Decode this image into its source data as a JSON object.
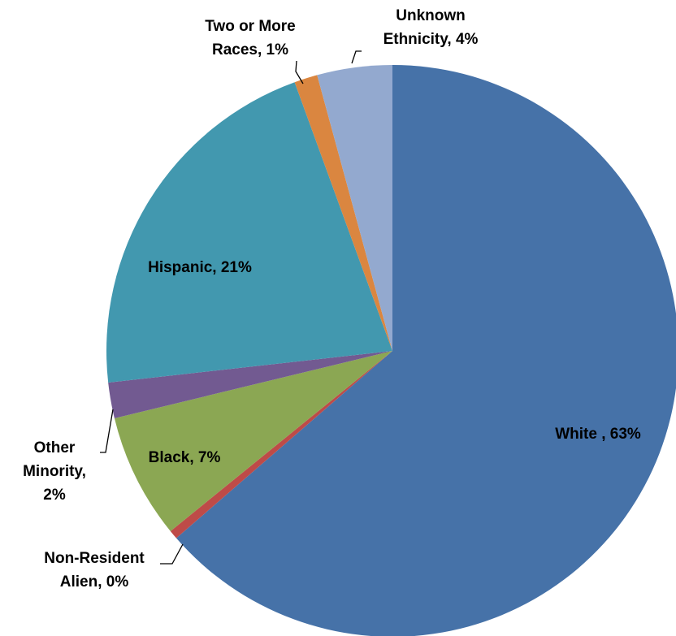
{
  "chart_data": {
    "type": "pie",
    "title": "",
    "start": "12 o'clock, clockwise",
    "slices": [
      {
        "category": "White ",
        "value": 63,
        "color": "#4672A8",
        "label": [
          "White , 63%"
        ]
      },
      {
        "category": "Non-Resident Alien",
        "value": 0.5,
        "color": "#BE4B48",
        "label": [
          "Non-Resident",
          "Alien, 0%"
        ]
      },
      {
        "category": "Black",
        "value": 7,
        "color": "#8BA753",
        "label": [
          "Black, 7%"
        ]
      },
      {
        "category": "Other Minority",
        "value": 2,
        "color": "#725A91",
        "label": [
          "Other",
          "Minority,",
          "2%"
        ]
      },
      {
        "category": "Hispanic",
        "value": 21,
        "color": "#4298AF",
        "label": [
          "Hispanic, 21%"
        ]
      },
      {
        "category": "Two or More Races",
        "value": 1.3,
        "color": "#DA8640",
        "label": [
          "Two or More",
          "Races, 1%"
        ]
      },
      {
        "category": "Unknown Ethnicity",
        "value": 4.2,
        "color": "#93A9CF",
        "label": [
          "Unknown",
          "Ethnicity, 4%"
        ]
      }
    ]
  }
}
